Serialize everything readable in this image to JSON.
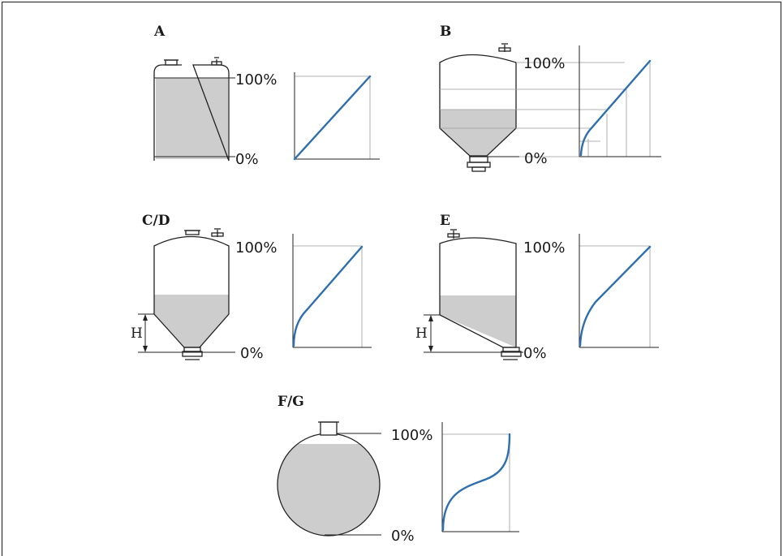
{
  "colors": {
    "curve": "#2e6fb0",
    "fill": "#cdcdcd",
    "line": "#222222",
    "grid": "#9a9a9a"
  },
  "panels": {
    "a": {
      "label": "A",
      "top": "100%",
      "bottom": "0%"
    },
    "b": {
      "label": "B",
      "top": "100%",
      "bottom": "0%"
    },
    "cd": {
      "label": "C/D",
      "top": "100%",
      "bottom": "0%",
      "height_label": "H"
    },
    "e": {
      "label": "E",
      "top": "100%",
      "bottom": "0%",
      "height_label": "H"
    },
    "fg": {
      "label": "F/G",
      "top": "100%",
      "bottom": "0%"
    }
  }
}
